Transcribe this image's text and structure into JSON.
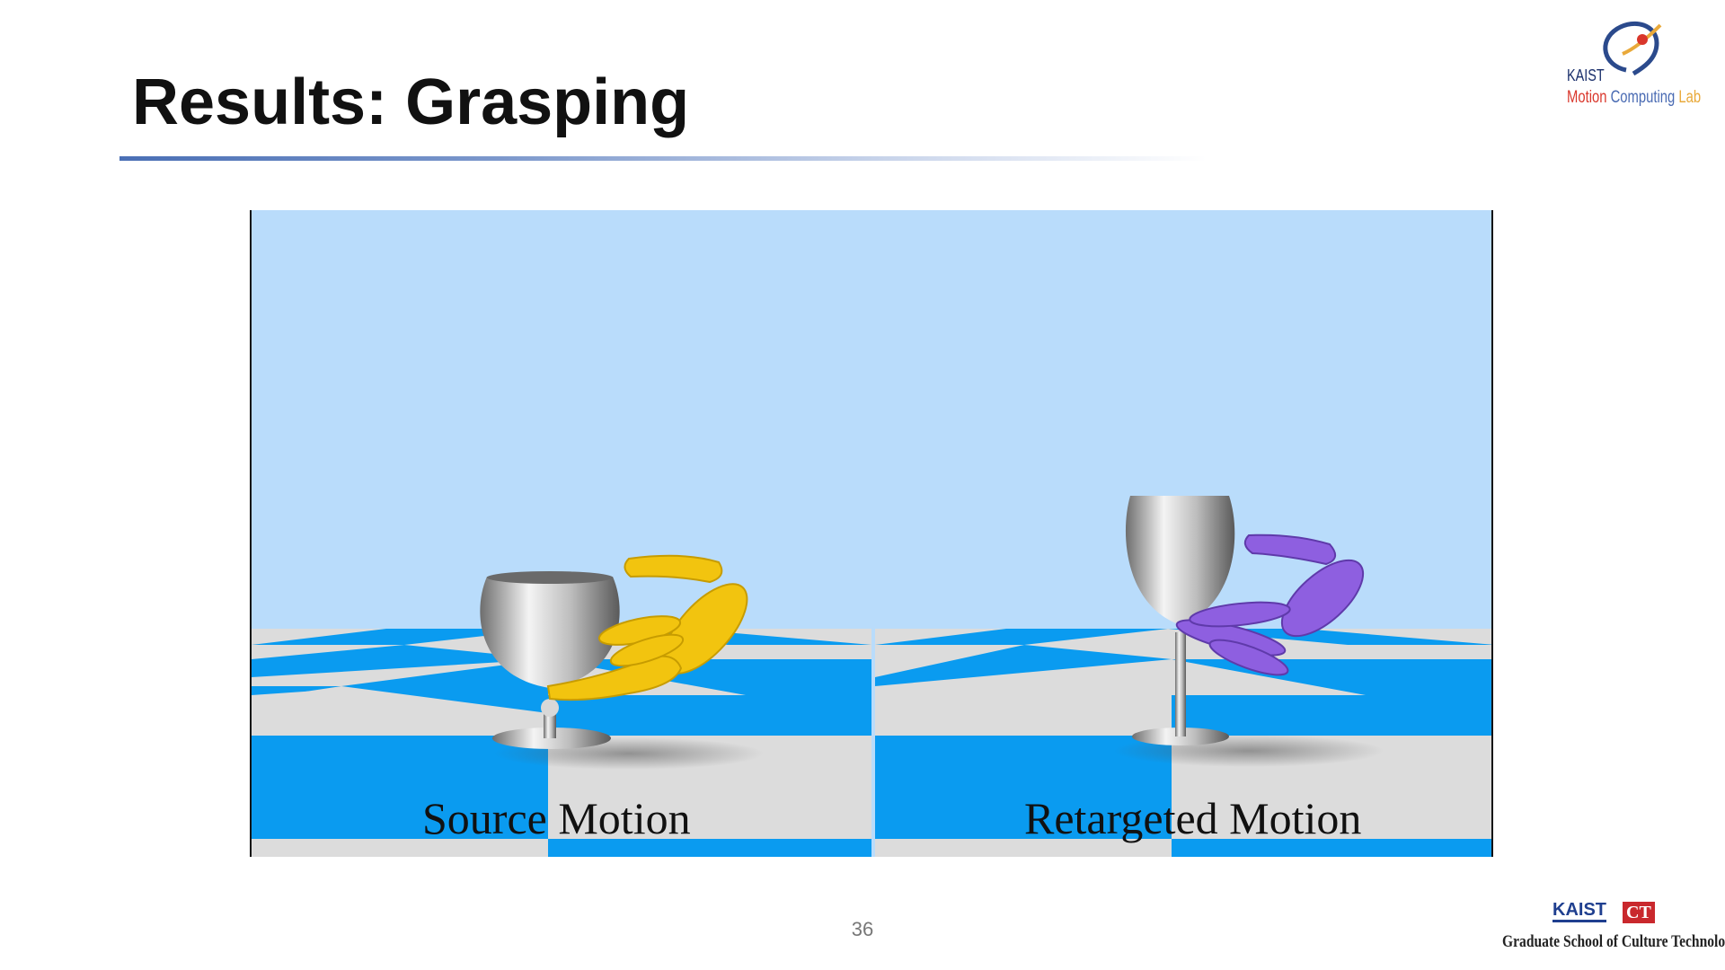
{
  "slide": {
    "title": "Results: Grasping",
    "page_number": "36"
  },
  "video": {
    "left_caption": "Source Motion",
    "right_caption": "Retargeted Motion"
  },
  "logos": {
    "lab": {
      "line1": "KAIST",
      "word_motion": "Motion",
      "word_computing": "Computing",
      "word_lab": "Lab"
    },
    "school": {
      "kaist": "KAIST",
      "ct": "CT",
      "name": "Graduate School of Culture Technology"
    }
  },
  "colors": {
    "sky": "#b9dcfb",
    "floor_blue": "#0a9bf0",
    "floor_gray": "#dcdcdc",
    "source_hand": "#f2c40f",
    "retargeted_hand": "#8e5fe0",
    "title_rule": "#4a6fb5"
  }
}
